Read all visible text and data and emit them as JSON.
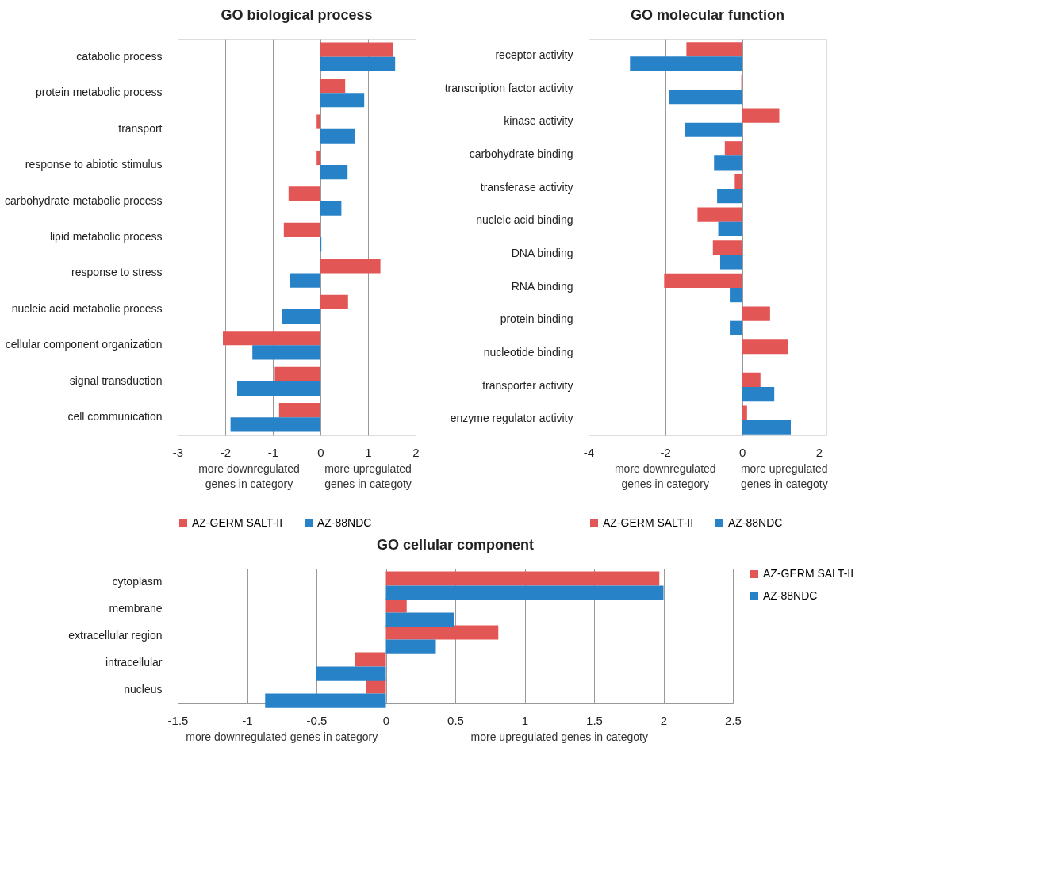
{
  "chart_data": [
    {
      "type": "bar",
      "orientation": "horizontal",
      "title": "GO biological process",
      "categories": [
        "catabolic process",
        "protein metabolic process",
        "transport",
        "response to abiotic stimulus",
        "carbohydrate metabolic process",
        "lipid metabolic process",
        "response to stress",
        "nucleic acid metabolic process",
        "cellular component organization",
        "signal transduction",
        "cell communication"
      ],
      "series": [
        {
          "name": "AZ-GERM SALT-II",
          "color": "#e35656",
          "values": [
            1.53,
            0.52,
            -0.08,
            -0.08,
            -0.67,
            -0.77,
            1.26,
            0.58,
            -2.05,
            -0.96,
            -0.87
          ]
        },
        {
          "name": "AZ-88NDC",
          "color": "#2882c8",
          "values": [
            1.57,
            0.92,
            0.72,
            0.57,
            0.44,
            0.02,
            -0.64,
            -0.81,
            -1.43,
            -1.75,
            -1.89
          ]
        }
      ],
      "xlim": [
        -3,
        2
      ],
      "xticks": [
        -3,
        -2,
        -1,
        0,
        1,
        2
      ],
      "grid": "x",
      "legend": "bottom",
      "annotations": [
        "more downregulated genes in category",
        "more upregulated genes in categoty"
      ]
    },
    {
      "type": "bar",
      "orientation": "horizontal",
      "title": "GO molecular function",
      "categories": [
        "receptor activity",
        "transcription factor activity",
        "kinase activity",
        "carbohydrate binding",
        "transferase activity",
        "nucleic acid binding",
        "DNA binding",
        "RNA binding",
        "protein binding",
        "nucleotide binding",
        "transporter activity",
        "enzyme regulator activity"
      ],
      "series": [
        {
          "name": "AZ-GERM SALT-II",
          "color": "#e35656",
          "values": [
            -1.45,
            -0.02,
            0.97,
            -0.45,
            -0.19,
            -1.16,
            -0.76,
            -2.03,
            0.73,
            1.19,
            0.48,
            0.13
          ]
        },
        {
          "name": "AZ-88NDC",
          "color": "#2882c8",
          "values": [
            -2.92,
            -1.91,
            -1.48,
            -0.73,
            -0.65,
            -0.62,
            -0.57,
            -0.32,
            -0.32,
            0,
            0.84,
            1.27
          ]
        }
      ],
      "xlim": [
        -4,
        2.2
      ],
      "xticks": [
        -4,
        -2,
        0,
        2
      ],
      "grid": "x",
      "legend": "bottom",
      "annotations": [
        "more downregulated genes in category",
        "more upregulated genes in categoty"
      ]
    },
    {
      "type": "bar",
      "orientation": "horizontal",
      "title": "GO cellular component",
      "categories": [
        "cytoplasm",
        "membrane",
        "extracellular region",
        "intracellular",
        "nucleus"
      ],
      "series": [
        {
          "name": "AZ-GERM SALT-II",
          "color": "#e35656",
          "values": [
            1.97,
            0.15,
            0.81,
            -0.22,
            -0.14
          ]
        },
        {
          "name": "AZ-88NDC",
          "color": "#2882c8",
          "values": [
            2.0,
            0.49,
            0.36,
            -0.5,
            -0.87
          ]
        }
      ],
      "xlim": [
        -1.5,
        2.5
      ],
      "xticks": [
        -1.5,
        -1,
        -0.5,
        0,
        0.5,
        1,
        1.5,
        2,
        2.5
      ],
      "grid": "x",
      "legend": "right",
      "annotations": [
        "more downregulated genes in category",
        "more upregulated genes in categoty"
      ]
    }
  ]
}
